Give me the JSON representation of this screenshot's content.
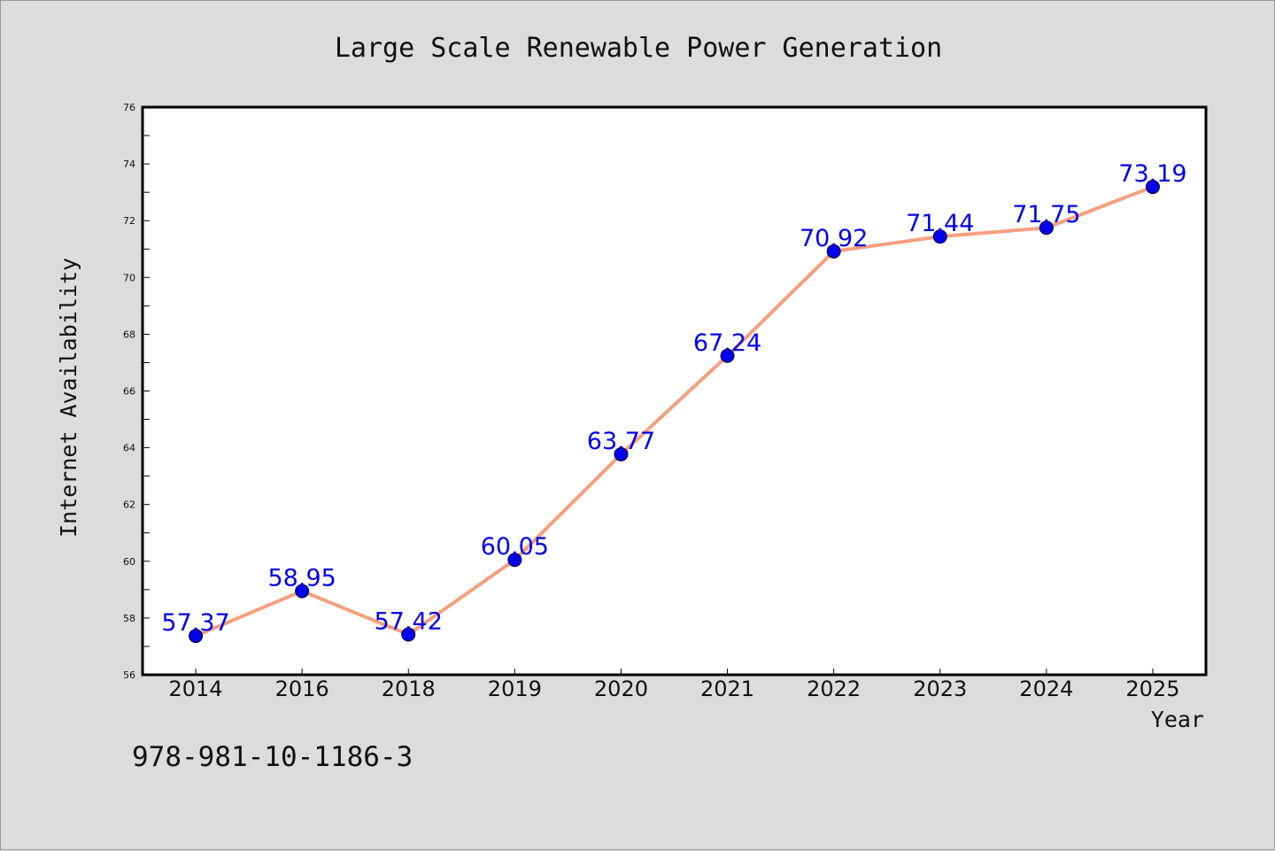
{
  "chart_data": {
    "type": "line",
    "title": "Large Scale Renewable Power Generation",
    "xlabel": "Year",
    "ylabel": "Internet Availability",
    "categories": [
      "2014",
      "2016",
      "2018",
      "2019",
      "2020",
      "2021",
      "2022",
      "2023",
      "2024",
      "2025"
    ],
    "series": [
      {
        "values": [
          57.37,
          58.95,
          57.42,
          60.05,
          63.77,
          67.24,
          70.92,
          71.44,
          71.75,
          73.19
        ],
        "line_color": "#f4a07e",
        "marker_color": "#0000ee"
      }
    ],
    "data_labels": [
      "57.37",
      "58.95",
      "57.42",
      "60.05",
      "63.77",
      "67.24",
      "70.92",
      "71.44",
      "71.75",
      "73.19"
    ],
    "label_color": "#0000ee",
    "ylim": [
      56,
      76
    ],
    "yticks": [
      "56",
      "58",
      "60",
      "62",
      "64",
      "66",
      "68",
      "70",
      "72",
      "74",
      "76"
    ],
    "grid": false,
    "legend": "none"
  },
  "annotation": {
    "isbn": "978-981-10-1186-3"
  },
  "colors": {
    "background": "#dcdcdc",
    "plot_area": "#ffffff",
    "axes": "#000000"
  }
}
